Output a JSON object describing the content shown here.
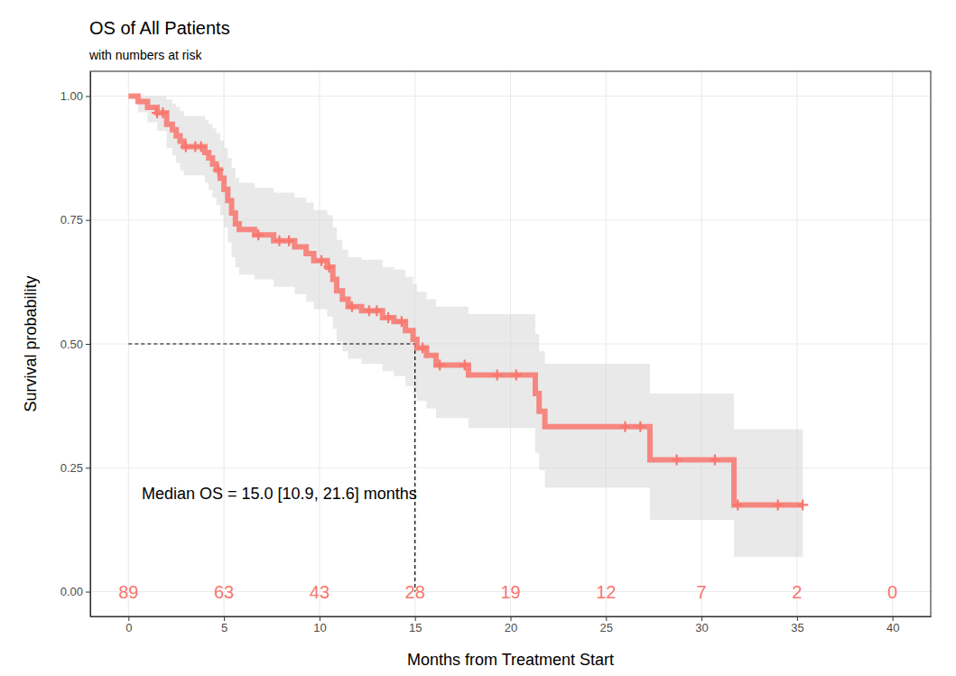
{
  "chart_data": {
    "type": "line",
    "title": "OS of All Patients",
    "subtitle": "with numbers at risk",
    "x_label": "Months from Treatment Start",
    "y_label": "Survival probability",
    "color": "#f8766d",
    "line_style": "step",
    "marker": "plus",
    "grid": true,
    "xlim": [
      -2,
      42
    ],
    "ylim": [
      -0.05,
      1.05
    ],
    "xticks": [
      0,
      5,
      10,
      15,
      20,
      25,
      30,
      35,
      40
    ],
    "yticks": [
      {
        "value": 0,
        "label": "0.00"
      },
      {
        "value": 0.25,
        "label": "0.25"
      },
      {
        "value": 0.5,
        "label": "0.50"
      },
      {
        "value": 0.75,
        "label": "0.75"
      },
      {
        "value": 1,
        "label": "1.00"
      }
    ],
    "x": [
      0,
      0.5,
      1.0,
      1.5,
      2.0,
      2.3,
      2.5,
      2.7,
      2.9,
      4.0,
      4.2,
      4.4,
      4.6,
      4.8,
      5.0,
      5.2,
      5.4,
      5.6,
      5.8,
      6.6,
      7.6,
      8.7,
      9.3,
      9.7,
      10.4,
      10.7,
      10.9,
      11.2,
      11.5,
      12.2,
      13.3,
      13.9,
      14.5,
      14.9,
      15.1,
      15.6,
      16.1,
      17.8,
      21.3,
      21.5,
      21.8,
      27.3,
      31.7,
      35.3
    ],
    "values": [
      1,
      0.989,
      0.977,
      0.966,
      0.943,
      0.932,
      0.92,
      0.909,
      0.898,
      0.886,
      0.875,
      0.863,
      0.851,
      0.834,
      0.812,
      0.789,
      0.764,
      0.742,
      0.731,
      0.72,
      0.708,
      0.696,
      0.682,
      0.668,
      0.655,
      0.63,
      0.607,
      0.59,
      0.575,
      0.567,
      0.553,
      0.545,
      0.527,
      0.509,
      0.492,
      0.477,
      0.457,
      0.437,
      0.4,
      0.364,
      0.333,
      0.266,
      0.175,
      0.175
    ],
    "lower": [
      1,
      0.967,
      0.947,
      0.93,
      0.895,
      0.88,
      0.865,
      0.85,
      0.84,
      0.825,
      0.81,
      0.795,
      0.78,
      0.76,
      0.735,
      0.705,
      0.675,
      0.655,
      0.64,
      0.63,
      0.615,
      0.6,
      0.585,
      0.57,
      0.555,
      0.53,
      0.505,
      0.485,
      0.47,
      0.46,
      0.445,
      0.435,
      0.415,
      0.4,
      0.385,
      0.37,
      0.35,
      0.33,
      0.28,
      0.245,
      0.21,
      0.145,
      0.07,
      0.07
    ],
    "upper": [
      1,
      1,
      1,
      1,
      0.993,
      0.985,
      0.978,
      0.97,
      0.96,
      0.952,
      0.944,
      0.935,
      0.925,
      0.91,
      0.895,
      0.875,
      0.855,
      0.835,
      0.825,
      0.815,
      0.805,
      0.795,
      0.785,
      0.77,
      0.76,
      0.735,
      0.71,
      0.69,
      0.675,
      0.67,
      0.655,
      0.65,
      0.635,
      0.62,
      0.605,
      0.59,
      0.575,
      0.56,
      0.52,
      0.485,
      0.46,
      0.4,
      0.328,
      0.328
    ],
    "censor_x": [
      1.5,
      1.8,
      3.0,
      3.5,
      3.8,
      4.7,
      6.8,
      7.9,
      8.4,
      10.1,
      10.5,
      11.7,
      12.6,
      13.0,
      13.6,
      14.3,
      15.4,
      16.3,
      17.6,
      19.3,
      20.3,
      26.0,
      26.8,
      28.7,
      30.7,
      31.9,
      34.0,
      35.3
    ],
    "censor_y": [
      0.966,
      0.966,
      0.898,
      0.898,
      0.898,
      0.851,
      0.72,
      0.708,
      0.708,
      0.668,
      0.655,
      0.575,
      0.567,
      0.567,
      0.553,
      0.545,
      0.492,
      0.457,
      0.457,
      0.437,
      0.437,
      0.333,
      0.333,
      0.266,
      0.266,
      0.175,
      0.175,
      0.175
    ],
    "at_risk": {
      "x": [
        0,
        5,
        10,
        15,
        20,
        25,
        30,
        35,
        40
      ],
      "y": 0,
      "values": [
        89,
        63,
        43,
        28,
        19,
        12,
        7,
        2,
        0
      ]
    },
    "median": {
      "x": 15.0,
      "y": 0.5,
      "label": "Median OS = 15.0 [10.9, 21.6] months"
    }
  }
}
